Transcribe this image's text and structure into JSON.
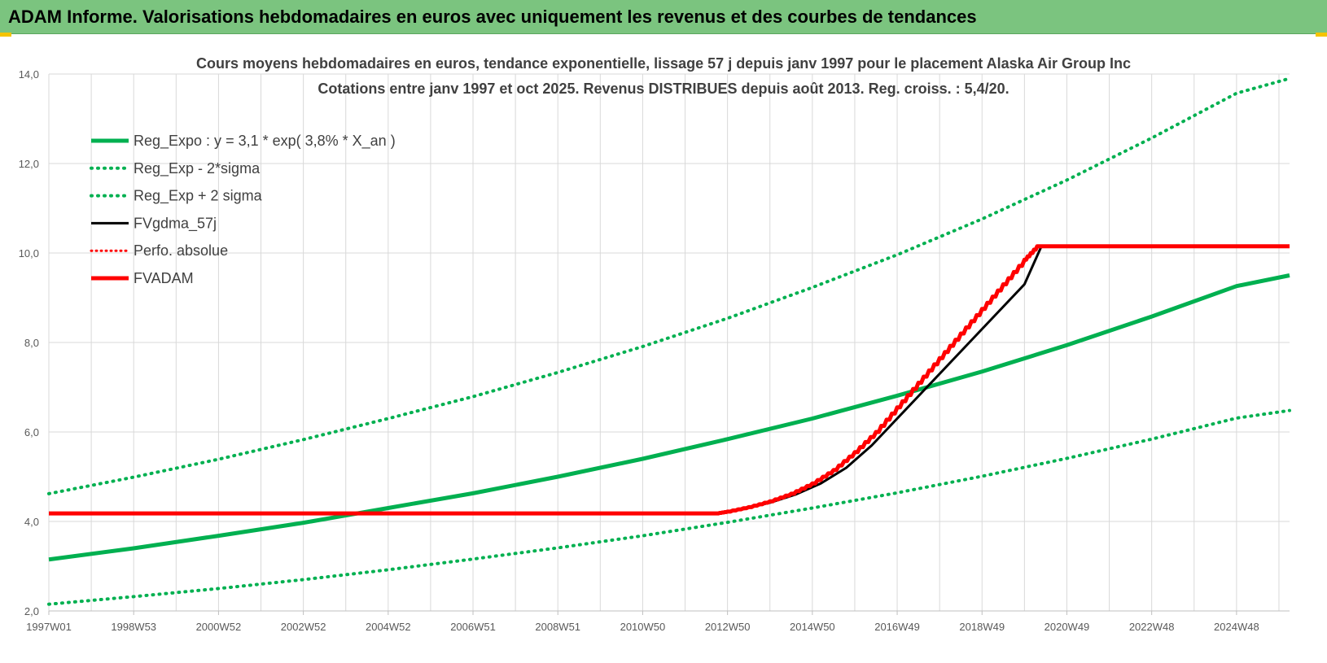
{
  "header": {
    "title": "ADAM Informe. Valorisations hebdomadaires en euros avec uniquement les revenus et des courbes de tendances"
  },
  "colors": {
    "header_bg": "#7bc47f",
    "trend_green": "#00b050",
    "fvgdma_black": "#000000",
    "fvadam_red": "#ff0000",
    "grid": "#d9d9d9"
  },
  "chart_data": {
    "type": "line",
    "title_line1": "Cours moyens hebdomadaires en euros, tendance exponentielle, lissage 57 j depuis janv 1997 pour le placement Alaska Air Group Inc",
    "title_line2": "Cotations entre janv 1997 et oct 2025. Revenus DISTRIBUES depuis août 2013. Reg. croiss. : 5,4/20.",
    "xlabel": "",
    "ylabel": "",
    "ylim": [
      2.0,
      14.0
    ],
    "xlim": [
      1997.0,
      2026.25
    ],
    "grid": true,
    "legend_position": "top-left",
    "y_ticks": [
      "2,0",
      "4,0",
      "6,0",
      "8,0",
      "10,0",
      "12,0",
      "14,0"
    ],
    "x_ticks": [
      {
        "label": "1997W01",
        "year": 1997.0
      },
      {
        "label": "1998W53",
        "year": 1999.0
      },
      {
        "label": "2000W52",
        "year": 2001.0
      },
      {
        "label": "2002W52",
        "year": 2003.0
      },
      {
        "label": "2004W52",
        "year": 2005.0
      },
      {
        "label": "2006W51",
        "year": 2007.0
      },
      {
        "label": "2008W51",
        "year": 2009.0
      },
      {
        "label": "2010W50",
        "year": 2011.0
      },
      {
        "label": "2012W50",
        "year": 2013.0
      },
      {
        "label": "2014W50",
        "year": 2015.0
      },
      {
        "label": "2016W49",
        "year": 2017.0
      },
      {
        "label": "2018W49",
        "year": 2019.0
      },
      {
        "label": "2020W49",
        "year": 2021.0
      },
      {
        "label": "2022W48",
        "year": 2023.0
      },
      {
        "label": "2024W48",
        "year": 2025.0
      }
    ],
    "series": [
      {
        "name": "Reg_Expo : y = 3,1 * exp( 3,8% *  X_an )",
        "style": "solid-green",
        "x": [
          1997.0,
          1999.0,
          2001.0,
          2003.0,
          2005.0,
          2007.0,
          2009.0,
          2011.0,
          2013.0,
          2015.0,
          2017.0,
          2019.0,
          2021.0,
          2023.0,
          2025.0,
          2026.25
        ],
        "y": [
          3.15,
          3.4,
          3.68,
          3.97,
          4.3,
          4.63,
          5.0,
          5.4,
          5.84,
          6.3,
          6.81,
          7.35,
          7.94,
          8.58,
          9.26,
          9.5
        ]
      },
      {
        "name": "Reg_Exp - 2*sigma",
        "style": "dotted-green",
        "x": [
          1997.0,
          1999.0,
          2001.0,
          2003.0,
          2005.0,
          2007.0,
          2009.0,
          2011.0,
          2013.0,
          2015.0,
          2017.0,
          2019.0,
          2021.0,
          2023.0,
          2025.0,
          2026.25
        ],
        "y": [
          2.15,
          2.32,
          2.5,
          2.7,
          2.92,
          3.16,
          3.41,
          3.68,
          3.98,
          4.3,
          4.64,
          5.01,
          5.41,
          5.84,
          6.31,
          6.48
        ]
      },
      {
        "name": "Reg_Exp + 2 sigma",
        "style": "dotted-green",
        "x": [
          1997.0,
          1999.0,
          2001.0,
          2003.0,
          2005.0,
          2007.0,
          2009.0,
          2011.0,
          2013.0,
          2015.0,
          2017.0,
          2019.0,
          2021.0,
          2023.0,
          2025.0,
          2026.25
        ],
        "y": [
          4.62,
          4.99,
          5.39,
          5.83,
          6.3,
          6.79,
          7.33,
          7.91,
          8.54,
          9.23,
          9.96,
          10.76,
          11.63,
          12.57,
          13.57,
          13.9
        ]
      },
      {
        "name": "FVgdma_57j",
        "style": "solid-black",
        "x": [
          1997.0,
          2012.8,
          2013.4,
          2014.0,
          2014.6,
          2015.2,
          2015.8,
          2016.4,
          2017.0,
          2017.6,
          2018.2,
          2018.8,
          2019.4,
          2020.0,
          2020.4,
          2021.0,
          2026.25
        ],
        "y": [
          4.18,
          4.18,
          4.28,
          4.42,
          4.6,
          4.85,
          5.2,
          5.7,
          6.3,
          6.9,
          7.5,
          8.1,
          8.7,
          9.3,
          10.15,
          10.15,
          10.15
        ]
      },
      {
        "name": "Perfo. absolue",
        "style": "dotted-red",
        "x": [],
        "y": []
      },
      {
        "name": "FVADAM",
        "style": "solid-red-stepped",
        "x": [
          1997.0,
          2012.75,
          2013.0,
          2013.5,
          2014.0,
          2014.5,
          2015.0,
          2015.5,
          2016.0,
          2016.5,
          2017.0,
          2017.5,
          2018.0,
          2018.5,
          2019.0,
          2019.5,
          2020.0,
          2020.3,
          2026.25
        ],
        "y": [
          4.18,
          4.18,
          4.22,
          4.32,
          4.45,
          4.62,
          4.85,
          5.15,
          5.55,
          6.0,
          6.55,
          7.1,
          7.65,
          8.2,
          8.75,
          9.3,
          9.85,
          10.15,
          10.15
        ]
      }
    ]
  }
}
